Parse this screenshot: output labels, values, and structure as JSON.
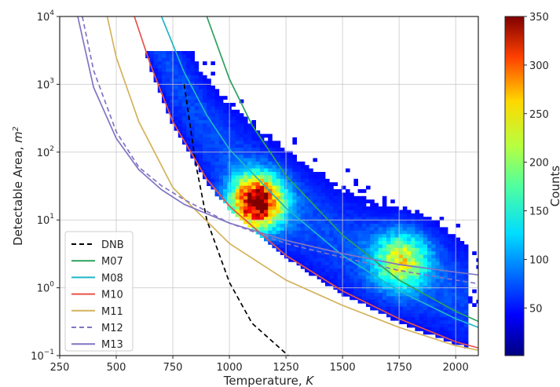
{
  "chart_data": {
    "type": "heatmap",
    "xlabel": "Temperature, K",
    "ylabel": "Detectable Area, m2",
    "xlim": [
      250,
      2100
    ],
    "ylim_log10": [
      -1,
      4
    ],
    "yscale": "log",
    "grid": true,
    "x_ticks": [
      "250",
      "500",
      "750",
      "1000",
      "1250",
      "1500",
      "1750",
      "2000"
    ],
    "y_ticks": [
      {
        "base": "10",
        "exp": "−1"
      },
      {
        "base": "10",
        "exp": "0"
      },
      {
        "base": "10",
        "exp": "1"
      },
      {
        "base": "10",
        "exp": "2"
      },
      {
        "base": "10",
        "exp": "3"
      },
      {
        "base": "10",
        "exp": "4"
      }
    ],
    "colorbar": {
      "label": "Counts",
      "range": [
        1,
        350
      ],
      "ticks": [
        "50",
        "100",
        "150",
        "200",
        "250",
        "300",
        "350"
      ],
      "colormap": "jet"
    },
    "density_clusters": [
      {
        "T": 1120,
        "A": 18,
        "peak_counts": 350
      },
      {
        "T": 1750,
        "A": 2.5,
        "peak_counts": 170
      }
    ],
    "legend_position": "lower-left",
    "series": [
      {
        "name": "DNB",
        "color": "#000000",
        "style": "dashed"
      },
      {
        "name": "M07",
        "color": "#2ca25f",
        "style": "solid"
      },
      {
        "name": "M08",
        "color": "#1fb6c8",
        "style": "solid"
      },
      {
        "name": "M10",
        "color": "#e8524a",
        "style": "solid"
      },
      {
        "name": "M11",
        "color": "#d4b25a",
        "style": "solid"
      },
      {
        "name": "M12",
        "color": "#8075c4",
        "style": "dashed"
      },
      {
        "name": "M13",
        "color": "#8075c4",
        "style": "solid"
      }
    ],
    "curves": {
      "DNB": [
        [
          800,
          1000
        ],
        [
          850,
          70
        ],
        [
          900,
          10
        ],
        [
          1000,
          1.2
        ],
        [
          1100,
          0.3
        ],
        [
          1260,
          0.1
        ]
      ],
      "M07": [
        [
          900,
          10000
        ],
        [
          1000,
          1200
        ],
        [
          1100,
          250
        ],
        [
          1250,
          45
        ],
        [
          1500,
          6
        ],
        [
          1750,
          1.3
        ],
        [
          2000,
          0.45
        ],
        [
          2100,
          0.32
        ]
      ],
      "M08": [
        [
          700,
          10000
        ],
        [
          800,
          1500
        ],
        [
          900,
          350
        ],
        [
          1000,
          110
        ],
        [
          1250,
          15
        ],
        [
          1500,
          3
        ],
        [
          1750,
          0.9
        ],
        [
          2000,
          0.35
        ],
        [
          2100,
          0.26
        ]
      ],
      "M10": [
        [
          580,
          10000
        ],
        [
          650,
          2000
        ],
        [
          750,
          280
        ],
        [
          900,
          40
        ],
        [
          1000,
          16
        ],
        [
          1250,
          3
        ],
        [
          1500,
          0.9
        ],
        [
          1750,
          0.35
        ],
        [
          2000,
          0.16
        ],
        [
          2100,
          0.13
        ]
      ],
      "M11": [
        [
          460,
          10000
        ],
        [
          500,
          2500
        ],
        [
          600,
          280
        ],
        [
          750,
          30
        ],
        [
          1000,
          4.5
        ],
        [
          1250,
          1.3
        ],
        [
          1500,
          0.55
        ],
        [
          1750,
          0.26
        ],
        [
          2000,
          0.14
        ],
        [
          2100,
          0.12
        ]
      ],
      "M12": [
        [
          350,
          10000
        ],
        [
          400,
          1600
        ],
        [
          500,
          200
        ],
        [
          600,
          60
        ],
        [
          700,
          32
        ],
        [
          800,
          20
        ],
        [
          1000,
          9
        ],
        [
          1250,
          4.5
        ],
        [
          1500,
          2.8
        ],
        [
          1750,
          1.8
        ],
        [
          2000,
          1.3
        ],
        [
          2100,
          1.15
        ]
      ],
      "M13": [
        [
          330,
          10000
        ],
        [
          400,
          900
        ],
        [
          500,
          160
        ],
        [
          600,
          55
        ],
        [
          700,
          28
        ],
        [
          800,
          17
        ],
        [
          1000,
          9
        ],
        [
          1250,
          5
        ],
        [
          1500,
          3.2
        ],
        [
          1750,
          2.2
        ],
        [
          2000,
          1.7
        ],
        [
          2100,
          1.55
        ]
      ]
    }
  }
}
